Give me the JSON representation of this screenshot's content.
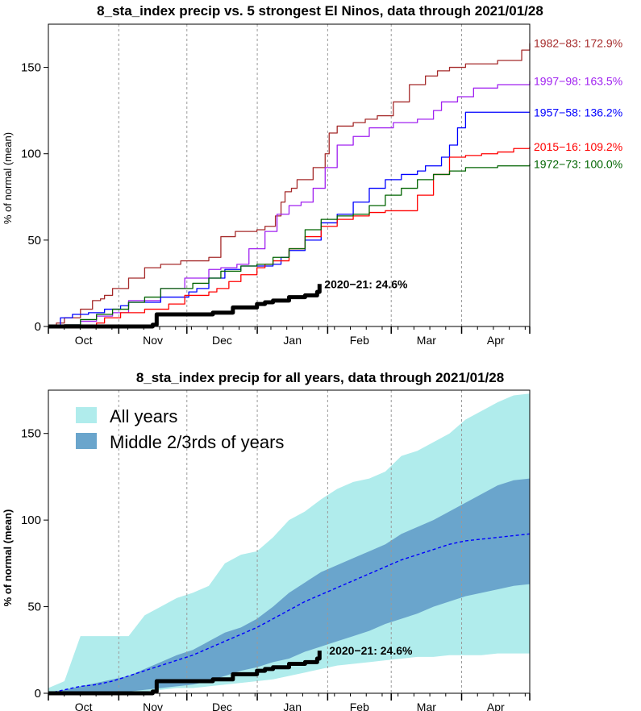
{
  "chart_data": [
    {
      "type": "line",
      "title": "8_sta_index precip vs. 5 strongest El Ninos, data through 2021/01/28",
      "ylabel": "% of normal (mean)",
      "ylim": [
        0,
        175
      ],
      "yticks": [
        0,
        50,
        100,
        150
      ],
      "months": [
        "Oct",
        "Nov",
        "Dec",
        "Jan",
        "Feb",
        "Mar",
        "Apr"
      ],
      "series": [
        {
          "name": "1982-83",
          "label": "1982−83: 172.9%",
          "color": "#a52a2a",
          "x": [
            0,
            10,
            20,
            40,
            55,
            65,
            70,
            80,
            100,
            120,
            140,
            165,
            200,
            215,
            233,
            239,
            260,
            270,
            283,
            290,
            295,
            303,
            310,
            330,
            345,
            350,
            360,
            380,
            395,
            410,
            430,
            450,
            470,
            485,
            500,
            520,
            540,
            560,
            590,
            600
          ],
          "y": [
            0,
            2,
            5,
            10,
            15,
            16,
            18,
            22,
            28,
            34,
            36,
            38,
            40,
            52,
            55,
            55,
            56,
            58,
            64,
            72,
            78,
            80,
            85,
            92,
            100,
            112,
            116,
            118,
            120,
            122,
            130,
            140,
            145,
            148,
            150,
            152,
            152,
            154,
            160,
            164
          ]
        },
        {
          "name": "1997-98",
          "label": "1997−98: 163.5%",
          "color": "#a020f0",
          "x": [
            0,
            20,
            40,
            60,
            80,
            100,
            140,
            170,
            200,
            215,
            235,
            250,
            270,
            285,
            300,
            315,
            330,
            345,
            360,
            380,
            400,
            430,
            460,
            480,
            490,
            510,
            530,
            560,
            600
          ],
          "y": [
            0,
            1,
            3,
            6,
            8,
            15,
            22,
            28,
            33,
            34,
            36,
            45,
            55,
            65,
            70,
            72,
            80,
            92,
            105,
            110,
            115,
            118,
            120,
            125,
            130,
            133,
            138,
            140,
            142
          ]
        },
        {
          "name": "1957-58",
          "label": "1957−58: 136.2%",
          "color": "#0000ff",
          "x": [
            0,
            15,
            30,
            50,
            70,
            90,
            100,
            140,
            175,
            185,
            200,
            220,
            240,
            260,
            280,
            290,
            300,
            320,
            340,
            360,
            380,
            400,
            420,
            440,
            460,
            470,
            490,
            500,
            510,
            520,
            600
          ],
          "y": [
            0,
            5,
            7,
            8,
            10,
            12,
            14,
            17,
            20,
            22,
            28,
            33,
            35,
            35,
            36,
            40,
            44,
            50,
            60,
            65,
            72,
            80,
            85,
            88,
            90,
            93,
            98,
            105,
            115,
            124,
            124
          ]
        },
        {
          "name": "2015-16",
          "label": "2015−16: 109.2%",
          "color": "#ff0000",
          "x": [
            0,
            30,
            60,
            70,
            90,
            120,
            150,
            170,
            200,
            210,
            225,
            240,
            260,
            270,
            280,
            300,
            320,
            340,
            360,
            380,
            400,
            420,
            440,
            460,
            480,
            500,
            520,
            540,
            560,
            580,
            600
          ],
          "y": [
            0,
            0,
            2,
            5,
            8,
            10,
            13,
            18,
            20,
            22,
            26,
            30,
            34,
            36,
            38,
            45,
            52,
            58,
            62,
            64,
            66,
            67,
            67,
            76,
            88,
            98,
            99,
            100,
            101,
            103,
            104
          ]
        },
        {
          "name": "1972-73",
          "label": "1972−73: 100.0%",
          "color": "#006400",
          "x": [
            0,
            20,
            40,
            60,
            80,
            100,
            120,
            140,
            180,
            200,
            215,
            240,
            260,
            280,
            300,
            320,
            340,
            360,
            380,
            400,
            420,
            440,
            460,
            480,
            500,
            520,
            540,
            560,
            600
          ],
          "y": [
            0,
            1,
            4,
            7,
            10,
            14,
            17,
            22,
            25,
            28,
            32,
            35,
            36,
            40,
            45,
            56,
            62,
            64,
            65,
            70,
            76,
            80,
            85,
            88,
            90,
            92,
            92,
            93,
            94
          ]
        },
        {
          "name": "2020-21",
          "label": "2020−21: 24.6%",
          "color": "#000000",
          "x": [
            0,
            50,
            100,
            130,
            135,
            170,
            200,
            205,
            225,
            230,
            250,
            260,
            270,
            280,
            295,
            300,
            320,
            330,
            335,
            338
          ],
          "y": [
            0,
            0,
            0,
            1,
            7,
            7,
            7,
            8,
            8,
            11,
            11,
            13,
            14,
            15,
            15,
            17,
            18,
            18,
            20,
            24.6
          ]
        }
      ]
    },
    {
      "type": "area",
      "title": "8_sta_index precip for all years, data through 2021/01/28",
      "ylabel": "% of normal (mean)",
      "ylim": [
        0,
        175
      ],
      "yticks": [
        0,
        50,
        100,
        150
      ],
      "months": [
        "Oct",
        "Nov",
        "Dec",
        "Jan",
        "Feb",
        "Mar",
        "Apr"
      ],
      "legend": [
        "All years",
        "Middle 2/3rds of years"
      ],
      "legend_colors": [
        "#b0ecec",
        "#6aa5cc"
      ],
      "x": [
        0,
        10,
        20,
        40,
        60,
        80,
        100,
        120,
        140,
        160,
        180,
        200,
        220,
        240,
        260,
        280,
        300,
        320,
        340,
        360,
        380,
        400,
        420,
        440,
        460,
        480,
        500,
        520,
        540,
        560,
        580,
        600
      ],
      "all_max": [
        3,
        5,
        7,
        33,
        33,
        33,
        33,
        45,
        50,
        55,
        58,
        62,
        75,
        80,
        82,
        90,
        100,
        105,
        112,
        118,
        122,
        124,
        128,
        137,
        140,
        145,
        150,
        158,
        163,
        168,
        172,
        173
      ],
      "all_min": [
        0,
        0,
        0,
        0,
        0,
        0,
        1,
        1,
        2,
        3,
        3,
        4,
        5,
        6,
        7,
        8,
        10,
        12,
        14,
        16,
        17,
        18,
        19,
        20,
        21,
        21,
        22,
        22,
        22,
        23,
        23,
        23
      ],
      "mid_max": [
        0,
        1,
        2,
        4,
        6,
        8,
        10,
        14,
        18,
        22,
        25,
        30,
        35,
        38,
        43,
        50,
        58,
        64,
        70,
        74,
        78,
        82,
        86,
        92,
        96,
        100,
        105,
        110,
        115,
        120,
        123,
        124
      ],
      "mid_min": [
        0,
        0,
        0,
        0,
        0,
        0,
        1,
        2,
        3,
        4,
        5,
        7,
        10,
        13,
        15,
        18,
        20,
        24,
        27,
        30,
        33,
        36,
        40,
        43,
        46,
        50,
        53,
        56,
        58,
        60,
        62,
        63
      ],
      "mean": [
        0,
        1,
        2,
        4,
        5,
        7,
        10,
        13,
        16,
        19,
        22,
        26,
        30,
        34,
        38,
        43,
        48,
        53,
        57,
        61,
        65,
        69,
        73,
        77,
        80,
        83,
        86,
        88,
        89,
        90,
        91,
        92
      ],
      "mean_color": "#0000ff",
      "current": {
        "label": "2020−21: 24.6%",
        "x": [
          0,
          50,
          100,
          130,
          135,
          170,
          200,
          205,
          225,
          230,
          250,
          260,
          270,
          280,
          295,
          300,
          320,
          330,
          335,
          338
        ],
        "y": [
          0,
          0,
          0,
          1,
          7,
          7,
          7,
          8,
          8,
          11,
          11,
          13,
          14,
          15,
          15,
          17,
          18,
          18,
          20,
          24.6
        ]
      }
    }
  ]
}
